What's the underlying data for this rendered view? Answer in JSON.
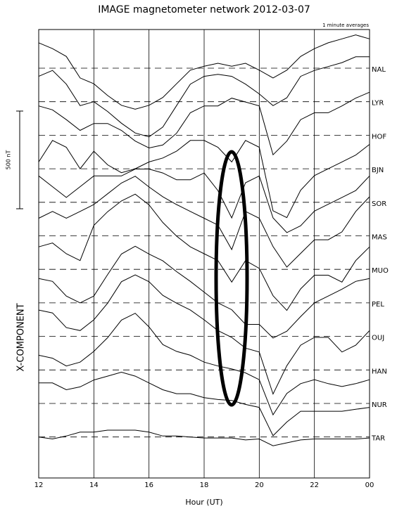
{
  "chart_data": {
    "type": "stacked-line",
    "title": "IMAGE magnetometer network 2012-03-07",
    "subtitle": "1 minute averages",
    "x_label": "Hour (UT)",
    "y_label": "X-COMPONENT",
    "scale_bar": {
      "value": 500,
      "label": "500 nT"
    },
    "color": "#000000",
    "xlim": [
      12,
      24
    ],
    "xticks": [
      12,
      14,
      16,
      18,
      20,
      22,
      {
        "value": 24,
        "label": "00"
      }
    ],
    "x": [
      12,
      12.5,
      13,
      13.5,
      14,
      14.5,
      15,
      15.5,
      16,
      16.5,
      17,
      17.5,
      18,
      18.5,
      19,
      19.5,
      20,
      20.5,
      21,
      21.5,
      22,
      22.5,
      23,
      23.5,
      24
    ],
    "series": [
      {
        "name": "NAL",
        "values": [
          130,
          100,
          60,
          -50,
          -80,
          -140,
          -190,
          -210,
          -190,
          -150,
          -80,
          -10,
          10,
          25,
          10,
          25,
          -10,
          -50,
          -10,
          60,
          100,
          130,
          150,
          170,
          150
        ]
      },
      {
        "name": "LYR",
        "values": [
          130,
          160,
          90,
          -20,
          0,
          -50,
          -110,
          -160,
          -180,
          -130,
          -20,
          90,
          130,
          140,
          130,
          90,
          40,
          -20,
          20,
          130,
          160,
          180,
          200,
          230,
          230
        ]
      },
      {
        "name": "HOF",
        "values": [
          150,
          130,
          80,
          25,
          60,
          60,
          25,
          -30,
          -65,
          -50,
          10,
          115,
          150,
          150,
          190,
          170,
          150,
          -100,
          -30,
          80,
          115,
          115,
          150,
          190,
          220
        ]
      },
      {
        "name": "BJN",
        "values": [
          35,
          145,
          110,
          0,
          90,
          20,
          -20,
          0,
          35,
          55,
          90,
          145,
          145,
          110,
          35,
          145,
          110,
          -215,
          -250,
          -110,
          -35,
          0,
          35,
          70,
          125
        ]
      },
      {
        "name": "SOR",
        "values": [
          135,
          80,
          25,
          80,
          135,
          135,
          135,
          170,
          170,
          150,
          115,
          115,
          150,
          60,
          -80,
          100,
          135,
          -80,
          -155,
          -120,
          -45,
          -10,
          25,
          60,
          135
        ]
      },
      {
        "name": "MAS",
        "values": [
          90,
          125,
          90,
          125,
          160,
          215,
          270,
          305,
          250,
          200,
          160,
          125,
          90,
          55,
          -70,
          125,
          90,
          -55,
          -160,
          -90,
          -20,
          -20,
          20,
          125,
          200
        ]
      },
      {
        "name": "MUO",
        "values": [
          115,
          135,
          80,
          45,
          225,
          295,
          350,
          385,
          330,
          240,
          170,
          115,
          80,
          45,
          -65,
          45,
          5,
          -135,
          -210,
          -100,
          -30,
          -30,
          -65,
          45,
          115
        ]
      },
      {
        "name": "PEL",
        "values": [
          125,
          110,
          35,
          0,
          35,
          145,
          250,
          290,
          250,
          215,
          160,
          110,
          55,
          0,
          -35,
          -110,
          -110,
          -180,
          -145,
          -70,
          0,
          35,
          70,
          110,
          125
        ]
      },
      {
        "name": "OUJ",
        "values": [
          135,
          120,
          45,
          30,
          85,
          170,
          280,
          315,
          280,
          210,
          170,
          135,
          85,
          30,
          -5,
          -60,
          -80,
          -295,
          -150,
          -45,
          -5,
          -5,
          -80,
          -45,
          30
        ]
      },
      {
        "name": "HAN",
        "values": [
          75,
          60,
          20,
          40,
          95,
          165,
          255,
          290,
          220,
          130,
          95,
          75,
          40,
          20,
          5,
          -15,
          -50,
          -230,
          -120,
          -70,
          -50,
          -70,
          -85,
          -70,
          -50
        ]
      },
      {
        "name": "NUR",
        "values": [
          105,
          105,
          70,
          85,
          120,
          140,
          160,
          140,
          105,
          70,
          50,
          50,
          30,
          20,
          15,
          -5,
          -20,
          -165,
          -95,
          -40,
          -40,
          -40,
          -40,
          -30,
          -20
        ]
      },
      {
        "name": "TAR",
        "values": [
          0,
          -10,
          5,
          25,
          25,
          35,
          35,
          35,
          25,
          5,
          5,
          0,
          -5,
          -5,
          -5,
          -15,
          -10,
          -45,
          -30,
          -15,
          -10,
          -10,
          -10,
          -10,
          -5
        ]
      }
    ]
  }
}
